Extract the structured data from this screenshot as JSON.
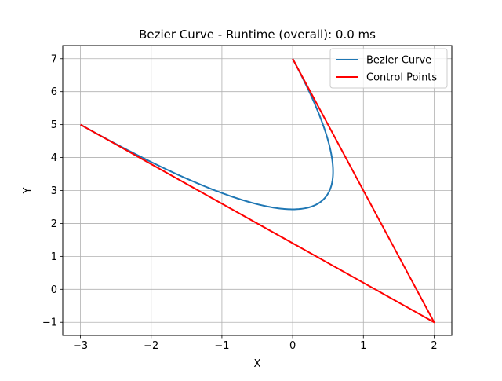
{
  "chart_data": {
    "type": "line",
    "title": "Bezier Curve - Runtime (overall): 0.0 ms",
    "xlabel": "X",
    "ylabel": "Y",
    "xlim": [
      -3.25,
      2.25
    ],
    "ylim": [
      -1.4,
      7.4
    ],
    "xticks": [
      -3,
      -2,
      -1,
      0,
      1,
      2
    ],
    "yticks": [
      -1,
      0,
      1,
      2,
      3,
      4,
      5,
      6,
      7
    ],
    "xtick_labels": [
      "−3",
      "−2",
      "−1",
      "0",
      "1",
      "2"
    ],
    "ytick_labels": [
      "−1",
      "0",
      "1",
      "2",
      "3",
      "4",
      "5",
      "6",
      "7"
    ],
    "grid": true,
    "legend_position": "top-right",
    "series": [
      {
        "name": "Bezier Curve",
        "color": "#1f77b4",
        "kind": "bezier",
        "control_points": [
          [
            0,
            7
          ],
          [
            2,
            -1
          ],
          [
            -3,
            5
          ]
        ]
      },
      {
        "name": "Control Points",
        "color": "#ff0000",
        "kind": "polyline",
        "x": [
          0,
          2,
          -3
        ],
        "y": [
          7,
          -1,
          5
        ]
      }
    ]
  }
}
